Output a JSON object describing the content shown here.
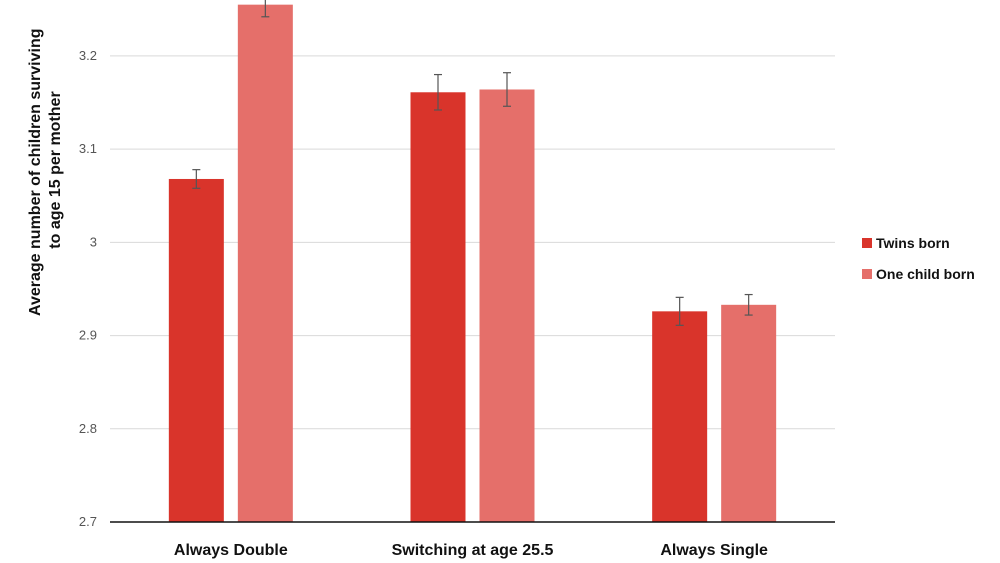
{
  "chart_data": {
    "type": "bar",
    "categories": [
      "Always Double",
      "Switching at age 25.5",
      "Always Single"
    ],
    "series": [
      {
        "name": "Twins born",
        "color": "#d9342b",
        "values": [
          3.068,
          3.161,
          2.926
        ],
        "error": [
          0.01,
          0.019,
          0.015
        ]
      },
      {
        "name": "One child born",
        "color": "#e56f6a",
        "values": [
          3.255,
          3.164,
          2.933
        ],
        "error": [
          0.013,
          0.018,
          0.011
        ]
      }
    ],
    "ylabel_lines": [
      "Average number of children surviving",
      "to age 15 per mother"
    ],
    "xlabel": "",
    "ylim": [
      2.7,
      3.26
    ],
    "yticks": [
      "2.7",
      "2.8",
      "2.9",
      "3",
      "3.1",
      "3.2"
    ],
    "grid": true,
    "legend_position": "right"
  }
}
